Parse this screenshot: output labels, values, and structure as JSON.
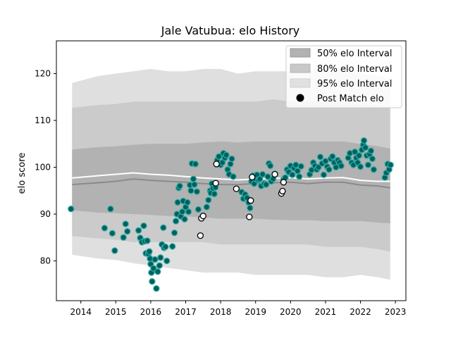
{
  "chart_data": {
    "type": "line",
    "title": "Jale Vatubua: elo History",
    "xlabel": "",
    "ylabel": "elo score",
    "xlim": [
      2013.3,
      2023.3
    ],
    "ylim": [
      71.5,
      127
    ],
    "xticks": [
      2014,
      2015,
      2016,
      2017,
      2018,
      2019,
      2020,
      2021,
      2022,
      2023
    ],
    "yticks": [
      80,
      90,
      100,
      110,
      120
    ],
    "grid": false,
    "legend_position": "top-right",
    "legend": [
      {
        "label": "50% elo Interval",
        "kind": "band",
        "color": "#a9a9a9"
      },
      {
        "label": "80% elo Interval",
        "kind": "band",
        "color": "#c4c4c4"
      },
      {
        "label": "95% elo Interval",
        "kind": "band",
        "color": "#dedede"
      },
      {
        "label": "Post Match elo",
        "kind": "marker",
        "color": "#000000"
      }
    ],
    "colors": {
      "band95": "#dfdfdf",
      "band80": "#cbcbcb",
      "band50": "#b2b2b2",
      "mean_line": "#ffffff",
      "median_line": "#8a8a8a",
      "point_fill_teal": "#006060",
      "point_edge_teal": "#2fa8a0",
      "point_fill_white": "#ffffff",
      "point_edge_white": "#000000"
    },
    "bands": {
      "x": [
        2013.75,
        2014.5,
        2015,
        2015.5,
        2016,
        2016.5,
        2017,
        2017.5,
        2018,
        2018.5,
        2019,
        2019.5,
        2020,
        2020.5,
        2021,
        2021.5,
        2022,
        2022.5,
        2022.85
      ],
      "p95_upper": [
        118,
        119.5,
        120,
        120.5,
        121,
        120.5,
        120.5,
        121,
        121,
        120,
        120.5,
        120.5,
        120.5,
        120.5,
        121,
        120.5,
        120,
        119.5,
        119
      ],
      "p95_lower": [
        81.3,
        80.5,
        80.2,
        79.5,
        79,
        78.5,
        78,
        77.5,
        77.5,
        77.5,
        77,
        77,
        77,
        77,
        76.5,
        76.5,
        77,
        76.5,
        76
      ],
      "p80_upper": [
        112.7,
        113.3,
        113.5,
        114,
        114,
        114,
        114,
        114,
        114,
        114,
        114,
        114.5,
        114,
        114,
        114,
        114,
        113.5,
        113,
        113
      ],
      "p80_lower": [
        85.3,
        84.8,
        84.5,
        84,
        84,
        84,
        84,
        84,
        83.5,
        83.5,
        83.5,
        83.5,
        83.5,
        83.5,
        83,
        83,
        83,
        82.5,
        82
      ],
      "p50_upper": [
        103.8,
        104.3,
        104.5,
        104.8,
        105,
        105,
        105,
        105.3,
        105.5,
        105.3,
        105.5,
        105.5,
        105.5,
        105.5,
        105.5,
        105.5,
        105,
        104.5,
        104
      ],
      "p50_lower": [
        90.8,
        90.3,
        90.2,
        90,
        89.8,
        89.6,
        89.5,
        89.3,
        89,
        89,
        89,
        88.8,
        88.7,
        88.7,
        88.5,
        88.5,
        88.5,
        88.2,
        88
      ],
      "mean": [
        97.7,
        98.2,
        98.5,
        98.8,
        98.5,
        98.3,
        98,
        97.7,
        97.5,
        97.3,
        97.5,
        97.6,
        97.8,
        97.5,
        97.7,
        97.8,
        97.2,
        97,
        97
      ],
      "median": [
        96.3,
        96.7,
        97,
        97.5,
        97.2,
        97,
        96.8,
        96.5,
        96.3,
        96.3,
        96.5,
        96.7,
        96.8,
        96.5,
        96.8,
        96.8,
        96.2,
        96,
        95.6
      ]
    },
    "points_teal": [
      {
        "x": 2013.72,
        "y": 91.1
      },
      {
        "x": 2014.68,
        "y": 87.0
      },
      {
        "x": 2014.85,
        "y": 91.1
      },
      {
        "x": 2014.9,
        "y": 85.9
      },
      {
        "x": 2014.97,
        "y": 82.2
      },
      {
        "x": 2015.22,
        "y": 85.0
      },
      {
        "x": 2015.28,
        "y": 87.9
      },
      {
        "x": 2015.33,
        "y": 86.3
      },
      {
        "x": 2015.65,
        "y": 86.5
      },
      {
        "x": 2015.7,
        "y": 84.9
      },
      {
        "x": 2015.75,
        "y": 84.0
      },
      {
        "x": 2015.8,
        "y": 87.5
      },
      {
        "x": 2015.83,
        "y": 84.2
      },
      {
        "x": 2015.86,
        "y": 81.6
      },
      {
        "x": 2015.9,
        "y": 84.3
      },
      {
        "x": 2015.93,
        "y": 81.5
      },
      {
        "x": 2015.96,
        "y": 82.0
      },
      {
        "x": 2015.98,
        "y": 80.5
      },
      {
        "x": 2016.0,
        "y": 79.3
      },
      {
        "x": 2016.02,
        "y": 77.5
      },
      {
        "x": 2016.04,
        "y": 75.6
      },
      {
        "x": 2016.08,
        "y": 78.4
      },
      {
        "x": 2016.12,
        "y": 80.3
      },
      {
        "x": 2016.16,
        "y": 74.1
      },
      {
        "x": 2016.2,
        "y": 77.7
      },
      {
        "x": 2016.25,
        "y": 79.0
      },
      {
        "x": 2016.28,
        "y": 80.7
      },
      {
        "x": 2016.32,
        "y": 83.5
      },
      {
        "x": 2016.36,
        "y": 87.1
      },
      {
        "x": 2016.38,
        "y": 82.8
      },
      {
        "x": 2016.42,
        "y": 83.0
      },
      {
        "x": 2016.46,
        "y": 80.0
      },
      {
        "x": 2016.62,
        "y": 83.1
      },
      {
        "x": 2016.68,
        "y": 86.0
      },
      {
        "x": 2016.72,
        "y": 88.5
      },
      {
        "x": 2016.75,
        "y": 90.0
      },
      {
        "x": 2016.77,
        "y": 92.5
      },
      {
        "x": 2016.8,
        "y": 95.6
      },
      {
        "x": 2016.83,
        "y": 96.0
      },
      {
        "x": 2016.86,
        "y": 89.5
      },
      {
        "x": 2016.9,
        "y": 90.5
      },
      {
        "x": 2016.93,
        "y": 92.8
      },
      {
        "x": 2016.97,
        "y": 88.9
      },
      {
        "x": 2017.0,
        "y": 91.5
      },
      {
        "x": 2017.05,
        "y": 92.5
      },
      {
        "x": 2017.08,
        "y": 90.5
      },
      {
        "x": 2017.12,
        "y": 96.2
      },
      {
        "x": 2017.15,
        "y": 95.0
      },
      {
        "x": 2017.18,
        "y": 100.8
      },
      {
        "x": 2017.22,
        "y": 97.5
      },
      {
        "x": 2017.25,
        "y": 96.3
      },
      {
        "x": 2017.28,
        "y": 100.7
      },
      {
        "x": 2017.32,
        "y": 94.8
      },
      {
        "x": 2017.36,
        "y": 91.0
      },
      {
        "x": 2017.6,
        "y": 91.5
      },
      {
        "x": 2017.65,
        "y": 93.0
      },
      {
        "x": 2017.7,
        "y": 95.0
      },
      {
        "x": 2017.72,
        "y": 94.5
      },
      {
        "x": 2017.75,
        "y": 96.5
      },
      {
        "x": 2017.78,
        "y": 95.5
      },
      {
        "x": 2017.82,
        "y": 94.3
      },
      {
        "x": 2017.85,
        "y": 95.7
      },
      {
        "x": 2017.9,
        "y": 101.5
      },
      {
        "x": 2017.95,
        "y": 102.3
      },
      {
        "x": 2018.0,
        "y": 100.5
      },
      {
        "x": 2018.05,
        "y": 101.0
      },
      {
        "x": 2018.08,
        "y": 103.0
      },
      {
        "x": 2018.12,
        "y": 102.0
      },
      {
        "x": 2018.16,
        "y": 102.6
      },
      {
        "x": 2018.2,
        "y": 99.5
      },
      {
        "x": 2018.24,
        "y": 98.5
      },
      {
        "x": 2018.28,
        "y": 100.7
      },
      {
        "x": 2018.32,
        "y": 101.8
      },
      {
        "x": 2018.36,
        "y": 98.0
      },
      {
        "x": 2018.6,
        "y": 94.7
      },
      {
        "x": 2018.65,
        "y": 93.3
      },
      {
        "x": 2018.7,
        "y": 94.2
      },
      {
        "x": 2018.75,
        "y": 93.5
      },
      {
        "x": 2018.8,
        "y": 92.5
      },
      {
        "x": 2018.84,
        "y": 91.3
      },
      {
        "x": 2018.88,
        "y": 97.0
      },
      {
        "x": 2018.92,
        "y": 98.2
      },
      {
        "x": 2018.96,
        "y": 96.5
      },
      {
        "x": 2019.0,
        "y": 97.5
      },
      {
        "x": 2019.04,
        "y": 98.4
      },
      {
        "x": 2019.08,
        "y": 97.3
      },
      {
        "x": 2019.12,
        "y": 97.5
      },
      {
        "x": 2019.16,
        "y": 96.0
      },
      {
        "x": 2019.2,
        "y": 98.5
      },
      {
        "x": 2019.25,
        "y": 96.5
      },
      {
        "x": 2019.3,
        "y": 96.3
      },
      {
        "x": 2019.35,
        "y": 98.0
      },
      {
        "x": 2019.38,
        "y": 100.8
      },
      {
        "x": 2019.42,
        "y": 100.3
      },
      {
        "x": 2019.45,
        "y": 97.0
      },
      {
        "x": 2019.5,
        "y": 97.5
      },
      {
        "x": 2019.55,
        "y": 98.6
      },
      {
        "x": 2019.8,
        "y": 97.4
      },
      {
        "x": 2019.85,
        "y": 97.8
      },
      {
        "x": 2019.9,
        "y": 99.5
      },
      {
        "x": 2019.95,
        "y": 99.0
      },
      {
        "x": 2020.0,
        "y": 100.3
      },
      {
        "x": 2020.05,
        "y": 98.4
      },
      {
        "x": 2020.1,
        "y": 99.8
      },
      {
        "x": 2020.15,
        "y": 100.5
      },
      {
        "x": 2020.2,
        "y": 99.2
      },
      {
        "x": 2020.25,
        "y": 98.0
      },
      {
        "x": 2020.3,
        "y": 100.2
      },
      {
        "x": 2020.55,
        "y": 98.5
      },
      {
        "x": 2020.6,
        "y": 99.4
      },
      {
        "x": 2020.65,
        "y": 101.0
      },
      {
        "x": 2020.7,
        "y": 100.3
      },
      {
        "x": 2020.75,
        "y": 99.5
      },
      {
        "x": 2020.8,
        "y": 100.0
      },
      {
        "x": 2020.85,
        "y": 102.2
      },
      {
        "x": 2020.9,
        "y": 100.8
      },
      {
        "x": 2020.95,
        "y": 98.4
      },
      {
        "x": 2021.0,
        "y": 101.3
      },
      {
        "x": 2021.05,
        "y": 100.1
      },
      {
        "x": 2021.1,
        "y": 99.5
      },
      {
        "x": 2021.15,
        "y": 101.8
      },
      {
        "x": 2021.2,
        "y": 102.3
      },
      {
        "x": 2021.25,
        "y": 101.0
      },
      {
        "x": 2021.3,
        "y": 100.0
      },
      {
        "x": 2021.35,
        "y": 101.5
      },
      {
        "x": 2021.4,
        "y": 101.0
      },
      {
        "x": 2021.45,
        "y": 100.3
      },
      {
        "x": 2021.65,
        "y": 102.0
      },
      {
        "x": 2021.7,
        "y": 103.0
      },
      {
        "x": 2021.75,
        "y": 101.0
      },
      {
        "x": 2021.8,
        "y": 100.5
      },
      {
        "x": 2021.84,
        "y": 103.3
      },
      {
        "x": 2021.88,
        "y": 102.0
      },
      {
        "x": 2021.92,
        "y": 101.0
      },
      {
        "x": 2021.96,
        "y": 102.5
      },
      {
        "x": 2022.0,
        "y": 100.1
      },
      {
        "x": 2022.04,
        "y": 103.7
      },
      {
        "x": 2022.08,
        "y": 104.8
      },
      {
        "x": 2022.1,
        "y": 105.7
      },
      {
        "x": 2022.14,
        "y": 104.2
      },
      {
        "x": 2022.18,
        "y": 102.5
      },
      {
        "x": 2022.22,
        "y": 100.5
      },
      {
        "x": 2022.26,
        "y": 102.8
      },
      {
        "x": 2022.3,
        "y": 103.5
      },
      {
        "x": 2022.34,
        "y": 101.8
      },
      {
        "x": 2022.38,
        "y": 99.5
      },
      {
        "x": 2022.7,
        "y": 97.8
      },
      {
        "x": 2022.74,
        "y": 98.8
      },
      {
        "x": 2022.78,
        "y": 100.7
      },
      {
        "x": 2022.82,
        "y": 99.5
      },
      {
        "x": 2022.86,
        "y": 100.5
      }
    ],
    "points_white": [
      {
        "x": 2017.42,
        "y": 85.4
      },
      {
        "x": 2017.45,
        "y": 89.1
      },
      {
        "x": 2017.5,
        "y": 89.6
      },
      {
        "x": 2017.86,
        "y": 96.6
      },
      {
        "x": 2017.88,
        "y": 100.7
      },
      {
        "x": 2018.45,
        "y": 95.4
      },
      {
        "x": 2018.82,
        "y": 89.4
      },
      {
        "x": 2018.86,
        "y": 92.9
      },
      {
        "x": 2018.9,
        "y": 97.9
      },
      {
        "x": 2019.55,
        "y": 98.5
      },
      {
        "x": 2019.74,
        "y": 94.4
      },
      {
        "x": 2019.77,
        "y": 94.9
      },
      {
        "x": 2019.8,
        "y": 96.8
      }
    ]
  }
}
